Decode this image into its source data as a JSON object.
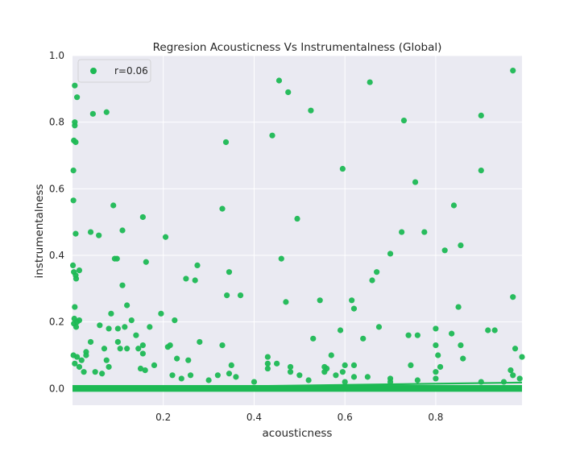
{
  "chart_data": {
    "type": "scatter",
    "title": "Regresion Acousticness Vs Instrumentalness (Global)",
    "xlabel": "acousticness",
    "ylabel": "instrumentalness",
    "xlim": [
      0.0,
      0.99
    ],
    "ylim": [
      -0.05,
      1.0
    ],
    "xticks": [
      0.2,
      0.4,
      0.6,
      0.8
    ],
    "xtick_labels": [
      "0.2",
      "0.4",
      "0.6",
      "0.8"
    ],
    "yticks": [
      0.0,
      0.2,
      0.4,
      0.6,
      0.8,
      1.0
    ],
    "ytick_labels": [
      "0.0",
      "0.2",
      "0.4",
      "0.6",
      "0.8",
      "1.0"
    ],
    "grid": true,
    "legend": {
      "position": "top-left",
      "label": "r=0.06"
    },
    "colors": {
      "points": "#1db954",
      "line": "#1db954",
      "plot_bg": "#eaeaf2",
      "grid": "#ffffff"
    },
    "regression": {
      "x": [
        0.0,
        0.99
      ],
      "y": [
        0.0,
        0.018
      ]
    },
    "series": [
      {
        "name": "r=0.06",
        "points": [
          [
            0.005,
            0.91
          ],
          [
            0.01,
            0.875
          ],
          [
            0.005,
            0.8
          ],
          [
            0.005,
            0.79
          ],
          [
            0.003,
            0.745
          ],
          [
            0.007,
            0.74
          ],
          [
            0.002,
            0.655
          ],
          [
            0.002,
            0.565
          ],
          [
            0.007,
            0.465
          ],
          [
            0.001,
            0.37
          ],
          [
            0.003,
            0.35
          ],
          [
            0.007,
            0.34
          ],
          [
            0.015,
            0.355
          ],
          [
            0.008,
            0.33
          ],
          [
            0.005,
            0.245
          ],
          [
            0.004,
            0.21
          ],
          [
            0.01,
            0.2
          ],
          [
            0.015,
            0.205
          ],
          [
            0.003,
            0.195
          ],
          [
            0.008,
            0.185
          ],
          [
            0.002,
            0.1
          ],
          [
            0.01,
            0.095
          ],
          [
            0.02,
            0.085
          ],
          [
            0.005,
            0.075
          ],
          [
            0.015,
            0.065
          ],
          [
            0.025,
            0.05
          ],
          [
            0.045,
            0.825
          ],
          [
            0.075,
            0.83
          ],
          [
            0.04,
            0.47
          ],
          [
            0.058,
            0.46
          ],
          [
            0.09,
            0.55
          ],
          [
            0.093,
            0.39
          ],
          [
            0.098,
            0.39
          ],
          [
            0.11,
            0.475
          ],
          [
            0.11,
            0.31
          ],
          [
            0.155,
            0.515
          ],
          [
            0.162,
            0.38
          ],
          [
            0.205,
            0.455
          ],
          [
            0.12,
            0.25
          ],
          [
            0.085,
            0.225
          ],
          [
            0.06,
            0.19
          ],
          [
            0.08,
            0.18
          ],
          [
            0.1,
            0.18
          ],
          [
            0.115,
            0.185
          ],
          [
            0.13,
            0.205
          ],
          [
            0.17,
            0.185
          ],
          [
            0.195,
            0.225
          ],
          [
            0.225,
            0.205
          ],
          [
            0.25,
            0.33
          ],
          [
            0.27,
            0.325
          ],
          [
            0.275,
            0.37
          ],
          [
            0.33,
            0.54
          ],
          [
            0.338,
            0.74
          ],
          [
            0.345,
            0.35
          ],
          [
            0.34,
            0.28
          ],
          [
            0.37,
            0.28
          ],
          [
            0.44,
            0.76
          ],
          [
            0.455,
            0.925
          ],
          [
            0.475,
            0.89
          ],
          [
            0.525,
            0.835
          ],
          [
            0.495,
            0.51
          ],
          [
            0.46,
            0.39
          ],
          [
            0.47,
            0.26
          ],
          [
            0.545,
            0.265
          ],
          [
            0.595,
            0.66
          ],
          [
            0.655,
            0.92
          ],
          [
            0.66,
            0.325
          ],
          [
            0.67,
            0.35
          ],
          [
            0.615,
            0.265
          ],
          [
            0.62,
            0.24
          ],
          [
            0.675,
            0.185
          ],
          [
            0.59,
            0.175
          ],
          [
            0.7,
            0.405
          ],
          [
            0.725,
            0.47
          ],
          [
            0.73,
            0.805
          ],
          [
            0.755,
            0.62
          ],
          [
            0.775,
            0.47
          ],
          [
            0.82,
            0.415
          ],
          [
            0.84,
            0.55
          ],
          [
            0.855,
            0.43
          ],
          [
            0.85,
            0.245
          ],
          [
            0.9,
            0.82
          ],
          [
            0.9,
            0.655
          ],
          [
            0.97,
            0.955
          ],
          [
            0.97,
            0.275
          ],
          [
            0.915,
            0.175
          ],
          [
            0.93,
            0.175
          ],
          [
            0.975,
            0.12
          ],
          [
            0.99,
            0.095
          ],
          [
            0.74,
            0.16
          ],
          [
            0.76,
            0.16
          ],
          [
            0.8,
            0.18
          ],
          [
            0.835,
            0.165
          ],
          [
            0.855,
            0.13
          ],
          [
            0.8,
            0.13
          ],
          [
            0.805,
            0.1
          ],
          [
            0.86,
            0.09
          ],
          [
            0.81,
            0.065
          ],
          [
            0.8,
            0.05
          ],
          [
            0.965,
            0.055
          ],
          [
            0.97,
            0.04
          ],
          [
            0.12,
            0.12
          ],
          [
            0.14,
            0.16
          ],
          [
            0.145,
            0.12
          ],
          [
            0.155,
            0.13
          ],
          [
            0.155,
            0.105
          ],
          [
            0.15,
            0.06
          ],
          [
            0.16,
            0.055
          ],
          [
            0.1,
            0.14
          ],
          [
            0.105,
            0.12
          ],
          [
            0.04,
            0.14
          ],
          [
            0.03,
            0.11
          ],
          [
            0.03,
            0.1
          ],
          [
            0.07,
            0.12
          ],
          [
            0.075,
            0.085
          ],
          [
            0.08,
            0.065
          ],
          [
            0.05,
            0.05
          ],
          [
            0.065,
            0.045
          ],
          [
            0.18,
            0.07
          ],
          [
            0.21,
            0.125
          ],
          [
            0.215,
            0.13
          ],
          [
            0.23,
            0.09
          ],
          [
            0.255,
            0.085
          ],
          [
            0.26,
            0.04
          ],
          [
            0.24,
            0.03
          ],
          [
            0.28,
            0.14
          ],
          [
            0.33,
            0.13
          ],
          [
            0.345,
            0.045
          ],
          [
            0.35,
            0.07
          ],
          [
            0.36,
            0.035
          ],
          [
            0.43,
            0.095
          ],
          [
            0.43,
            0.075
          ],
          [
            0.45,
            0.075
          ],
          [
            0.48,
            0.065
          ],
          [
            0.48,
            0.05
          ],
          [
            0.5,
            0.04
          ],
          [
            0.52,
            0.025
          ],
          [
            0.53,
            0.15
          ],
          [
            0.555,
            0.065
          ],
          [
            0.56,
            0.06
          ],
          [
            0.555,
            0.05
          ],
          [
            0.57,
            0.1
          ],
          [
            0.58,
            0.04
          ],
          [
            0.6,
            0.07
          ],
          [
            0.62,
            0.07
          ],
          [
            0.595,
            0.05
          ],
          [
            0.64,
            0.15
          ],
          [
            0.65,
            0.035
          ],
          [
            0.7,
            0.03
          ],
          [
            0.745,
            0.07
          ],
          [
            0.76,
            0.025
          ],
          [
            0.8,
            0.03
          ],
          [
            0.9,
            0.02
          ],
          [
            0.95,
            0.02
          ],
          [
            0.985,
            0.03
          ],
          [
            0.3,
            0.025
          ],
          [
            0.4,
            0.02
          ],
          [
            0.7,
            0.02
          ],
          [
            0.6,
            0.02
          ],
          [
            0.22,
            0.04
          ],
          [
            0.32,
            0.04
          ],
          [
            0.43,
            0.06
          ],
          [
            0.62,
            0.035
          ]
        ]
      }
    ]
  }
}
